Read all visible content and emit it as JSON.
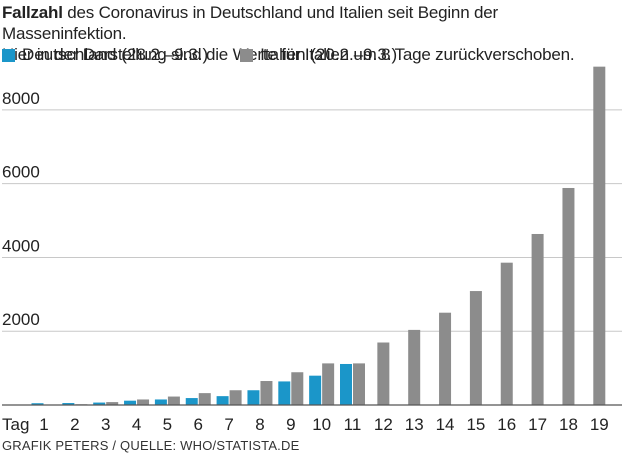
{
  "header": {
    "title_bold": "Fallzahl",
    "title_rest": " des Coronavirus in Deutschland und Italien seit Beginn der Masseninfektion.",
    "subtitle": "Hier in der Darstellung sind die Werte für Italien um 8 Tage zurückverschoben."
  },
  "footer": {
    "source": "GRAFIK PETERS / QUELLE: WHO/STATISTA.DE"
  },
  "colors": {
    "germany": "#1b96c9",
    "italy": "#8c8c8c",
    "grid": "#c8c8c8",
    "axis": "#555555"
  },
  "chart_data": {
    "type": "bar",
    "xlabel": "Tag",
    "ylabel": "",
    "ylim": [
      0,
      9000
    ],
    "yticks": [
      2000,
      4000,
      6000,
      8000
    ],
    "grid": true,
    "legend_position": "top-left",
    "categories": [
      "1",
      "2",
      "3",
      "4",
      "5",
      "6",
      "7",
      "8",
      "9",
      "10",
      "11",
      "12",
      "13",
      "14",
      "15",
      "16",
      "17",
      "18",
      "19"
    ],
    "series": [
      {
        "name": "Deutschland (28.2.–9.3.)",
        "color": "#1b96c9",
        "values": [
          48,
          53,
          66,
          117,
          150,
          188,
          240,
          400,
          639,
          795,
          1112,
          null,
          null,
          null,
          null,
          null,
          null,
          null,
          null
        ]
      },
      {
        "name": "Italien (20.2.–9.3.)",
        "color": "#8c8c8c",
        "values": [
          3,
          20,
          79,
          150,
          229,
          322,
          400,
          650,
          888,
          1128,
          1128,
          1694,
          2036,
          2502,
          3089,
          3858,
          4636,
          5883,
          9172
        ]
      }
    ]
  }
}
